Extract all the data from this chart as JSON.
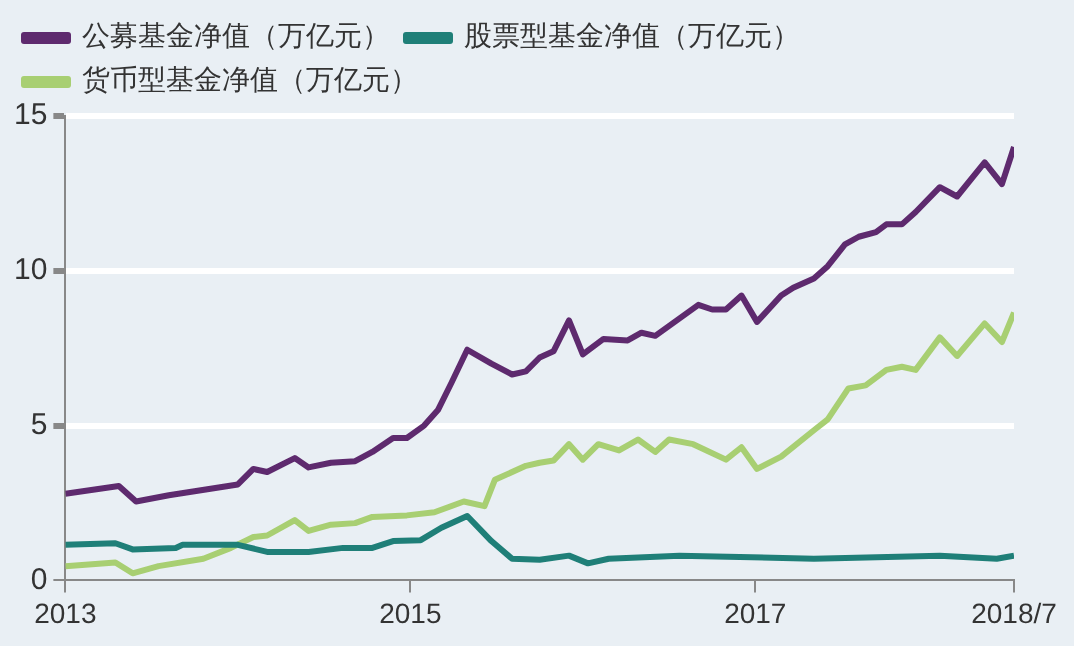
{
  "chart_data": {
    "type": "line",
    "legend": "top left",
    "grid": "y",
    "xlim": [
      2013,
      2018.5
    ],
    "xticks": [
      2013,
      2015,
      2017,
      {
        "value": 2018.5,
        "label": "2018/7"
      }
    ],
    "ylim": [
      0,
      15
    ],
    "yticks": [
      0,
      5,
      10,
      15
    ],
    "series": [
      {
        "name": "公募基金净值（万亿元）",
        "color": "#5e2a6e",
        "x": [
          2013.0,
          2013.31,
          2013.41,
          2013.6,
          2014.0,
          2014.09,
          2014.17,
          2014.33,
          2014.41,
          2014.54,
          2014.68,
          2014.78,
          2014.9,
          2014.98,
          2015.08,
          2015.16,
          2015.24,
          2015.33,
          2015.47,
          2015.59,
          2015.67,
          2015.75,
          2015.83,
          2015.92,
          2016.0,
          2016.12,
          2016.26,
          2016.34,
          2016.42,
          2016.67,
          2016.75,
          2016.83,
          2016.92,
          2017.01,
          2017.15,
          2017.22,
          2017.34,
          2017.42,
          2017.52,
          2017.6,
          2017.7,
          2017.76,
          2017.85,
          2017.93,
          2018.07,
          2018.17,
          2018.33,
          2018.43,
          2018.5
        ],
        "values": [
          2.8,
          3.05,
          2.55,
          2.75,
          3.1,
          3.6,
          3.5,
          3.95,
          3.65,
          3.8,
          3.85,
          4.15,
          4.6,
          4.6,
          5.0,
          5.5,
          6.4,
          7.45,
          7.0,
          6.65,
          6.75,
          7.2,
          7.4,
          8.4,
          7.3,
          7.8,
          7.75,
          8.0,
          7.9,
          8.9,
          8.75,
          8.75,
          9.2,
          8.35,
          9.2,
          9.45,
          9.75,
          10.15,
          10.85,
          11.1,
          11.25,
          11.5,
          11.5,
          11.9,
          12.7,
          12.4,
          13.5,
          12.8,
          14.0
        ]
      },
      {
        "name": "股票型基金净值（万亿元）",
        "color": "#1f7f78",
        "x": [
          2013.0,
          2013.29,
          2013.39,
          2013.64,
          2013.68,
          2014.0,
          2014.17,
          2014.41,
          2014.61,
          2014.78,
          2014.9,
          2015.06,
          2015.18,
          2015.33,
          2015.47,
          2015.59,
          2015.75,
          2015.92,
          2016.03,
          2016.15,
          2016.56,
          2017.34,
          2018.07,
          2018.4,
          2018.5
        ],
        "values": [
          1.15,
          1.2,
          1.0,
          1.05,
          1.15,
          1.15,
          0.92,
          0.92,
          1.05,
          1.05,
          1.27,
          1.3,
          1.7,
          2.08,
          1.27,
          0.7,
          0.67,
          0.8,
          0.55,
          0.7,
          0.8,
          0.7,
          0.8,
          0.7,
          0.8
        ]
      },
      {
        "name": "货币型基金净值（万亿元）",
        "color": "#a8cf72",
        "x": [
          2013.0,
          2013.29,
          2013.39,
          2013.54,
          2013.8,
          2013.96,
          2014.09,
          2014.17,
          2014.33,
          2014.41,
          2014.54,
          2014.68,
          2014.78,
          2014.98,
          2015.14,
          2015.31,
          2015.43,
          2015.49,
          2015.67,
          2015.75,
          2015.83,
          2015.92,
          2016.0,
          2016.09,
          2016.21,
          2016.32,
          2016.42,
          2016.5,
          2016.64,
          2016.83,
          2016.92,
          2017.01,
          2017.15,
          2017.34,
          2017.42,
          2017.54,
          2017.64,
          2017.76,
          2017.85,
          2017.93,
          2018.07,
          2018.17,
          2018.33,
          2018.43,
          2018.5
        ],
        "values": [
          0.46,
          0.58,
          0.23,
          0.46,
          0.7,
          1.05,
          1.4,
          1.45,
          1.95,
          1.6,
          1.8,
          1.85,
          2.05,
          2.1,
          2.2,
          2.55,
          2.4,
          3.25,
          3.7,
          3.8,
          3.87,
          4.4,
          3.9,
          4.4,
          4.2,
          4.55,
          4.15,
          4.55,
          4.4,
          3.9,
          4.3,
          3.6,
          4.0,
          4.85,
          5.2,
          6.2,
          6.3,
          6.8,
          6.9,
          6.8,
          7.85,
          7.25,
          8.3,
          7.7,
          8.65
        ]
      }
    ]
  }
}
